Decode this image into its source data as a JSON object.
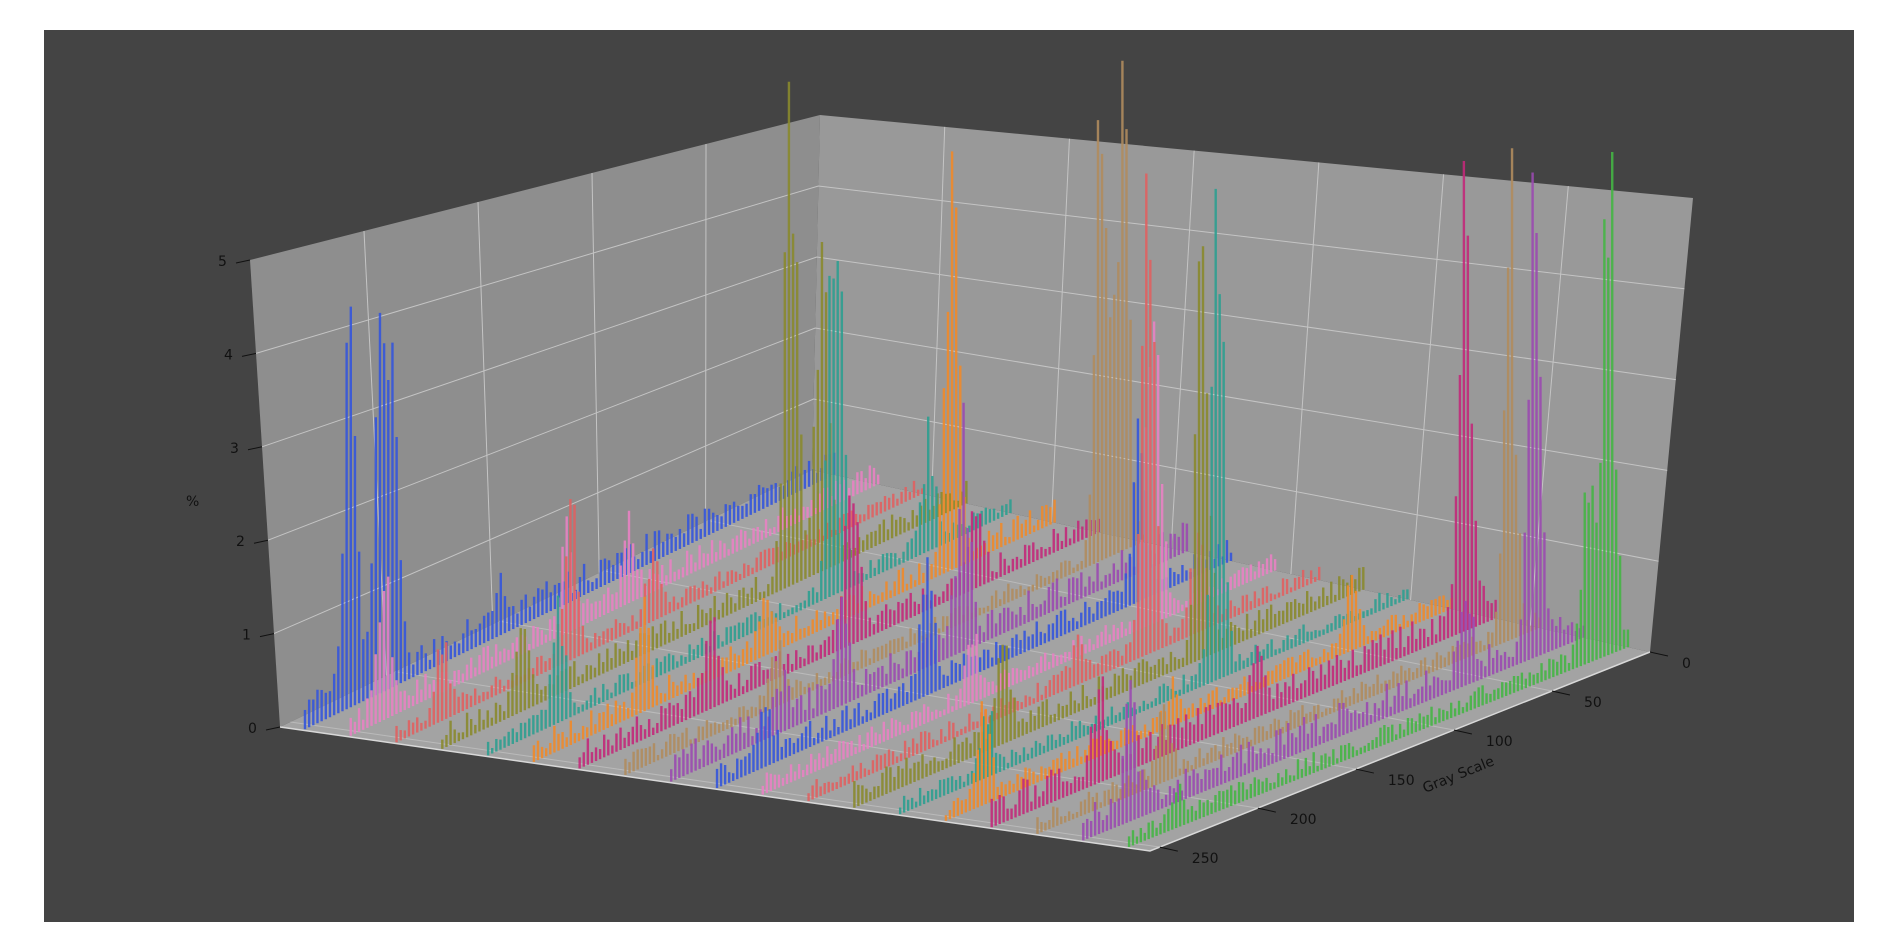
{
  "chart_data": {
    "type": "bar",
    "projection": "3d",
    "description_of_marks": "stacked rows of gray-level histogram bars",
    "title": "",
    "xlabel": "",
    "ylabel": "Gray Scale",
    "zlabel": "%",
    "ylim": [
      0,
      255
    ],
    "zlim": [
      0,
      5
    ],
    "y_ticks": [
      "0",
      "50",
      "100",
      "150",
      "200",
      "250"
    ],
    "z_ticks": [
      "0",
      "1",
      "2",
      "3",
      "4",
      "5"
    ],
    "grid": true,
    "colors": {
      "figure_background": "#444444",
      "pane_back": "#999999",
      "pane_left": "#8e8e8e",
      "pane_floor": "#a3a3a3",
      "gridline": "#c4c4c4"
    },
    "series": [
      {
        "color": "#3455db",
        "peaks": [
          {
            "g": 232,
            "h": 4.7
          },
          {
            "g": 218,
            "h": 3.8
          },
          {
            "g": 212,
            "h": 3.4
          },
          {
            "g": 160,
            "h": 0.4
          }
        ],
        "base": 0.25
      },
      {
        "color": "#e882c3",
        "peaks": [
          {
            "g": 238,
            "h": 1.7
          },
          {
            "g": 150,
            "h": 1.3
          },
          {
            "g": 120,
            "h": 1.0
          }
        ],
        "base": 0.2
      },
      {
        "color": "#e06060",
        "peaks": [
          {
            "g": 232,
            "h": 0.8
          },
          {
            "g": 170,
            "h": 1.9
          },
          {
            "g": 130,
            "h": 0.7
          }
        ],
        "base": 0.15
      },
      {
        "color": "#8a8a2e",
        "peaks": [
          {
            "g": 215,
            "h": 0.9
          },
          {
            "g": 85,
            "h": 6.5
          },
          {
            "g": 70,
            "h": 4.0
          }
        ],
        "base": 0.2
      },
      {
        "color": "#2e9e90",
        "peaks": [
          {
            "g": 220,
            "h": 1.2
          },
          {
            "g": 85,
            "h": 6.0
          },
          {
            "g": 40,
            "h": 1.5
          }
        ],
        "base": 0.15
      },
      {
        "color": "#f08a2a",
        "peaks": [
          {
            "g": 200,
            "h": 1.1
          },
          {
            "g": 50,
            "h": 5.5
          },
          {
            "g": 140,
            "h": 0.6
          }
        ],
        "base": 0.2
      },
      {
        "color": "#c2297a",
        "peaks": [
          {
            "g": 190,
            "h": 1.2
          },
          {
            "g": 120,
            "h": 2.6
          },
          {
            "g": 60,
            "h": 1.0
          }
        ],
        "base": 0.2
      },
      {
        "color": "#b08c5e",
        "peaks": [
          {
            "g": 180,
            "h": 0.7
          },
          {
            "g": 20,
            "h": 6.5
          },
          {
            "g": 10,
            "h": 6.3
          }
        ],
        "base": 0.15
      },
      {
        "color": "#9a4ab0",
        "peaks": [
          {
            "g": 200,
            "h": 0.5
          },
          {
            "g": 170,
            "h": 1.0
          },
          {
            "g": 110,
            "h": 2.6
          }
        ],
        "base": 0.25
      },
      {
        "color": "#3455db",
        "peaks": [
          {
            "g": 150,
            "h": 1.5
          },
          {
            "g": 230,
            "h": 0.6
          },
          {
            "g": 45,
            "h": 2.1
          }
        ],
        "base": 0.2
      },
      {
        "color": "#e882c3",
        "peaks": [
          {
            "g": 150,
            "h": 0.8
          },
          {
            "g": 60,
            "h": 5.8
          }
        ],
        "base": 0.15
      },
      {
        "color": "#e06060",
        "peaks": [
          {
            "g": 120,
            "h": 0.5
          },
          {
            "g": 85,
            "h": 5.7
          },
          {
            "g": 60,
            "h": 1.4
          }
        ],
        "base": 0.15
      },
      {
        "color": "#8a8a2e",
        "peaks": [
          {
            "g": 180,
            "h": 1.4
          },
          {
            "g": 80,
            "h": 5.6
          }
        ],
        "base": 0.2
      },
      {
        "color": "#2e9e90",
        "peaks": [
          {
            "g": 210,
            "h": 0.7
          },
          {
            "g": 95,
            "h": 6.0
          }
        ],
        "base": 0.15
      },
      {
        "color": "#f08a2a",
        "peaks": [
          {
            "g": 235,
            "h": 1.2
          },
          {
            "g": 50,
            "h": 0.8
          },
          {
            "g": 140,
            "h": 0.4
          }
        ],
        "base": 0.15
      },
      {
        "color": "#c2297a",
        "peaks": [
          {
            "g": 200,
            "h": 1.2
          },
          {
            "g": 15,
            "h": 5.5
          },
          {
            "g": 120,
            "h": 0.6
          }
        ],
        "base": 0.25
      },
      {
        "color": "#b08c5e",
        "peaks": [
          {
            "g": 190,
            "h": 0.8
          },
          {
            "g": 15,
            "h": 5.7
          }
        ],
        "base": 0.15
      },
      {
        "color": "#9a4ab0",
        "peaks": [
          {
            "g": 230,
            "h": 1.4
          },
          {
            "g": 25,
            "h": 5.6
          },
          {
            "g": 60,
            "h": 0.9
          }
        ],
        "base": 0.25
      },
      {
        "color": "#45b545",
        "peaks": [
          {
            "g": 230,
            "h": 0.3
          },
          {
            "g": 10,
            "h": 6.8
          },
          {
            "g": 20,
            "h": 2.5
          }
        ],
        "base": 0.15
      }
    ]
  }
}
